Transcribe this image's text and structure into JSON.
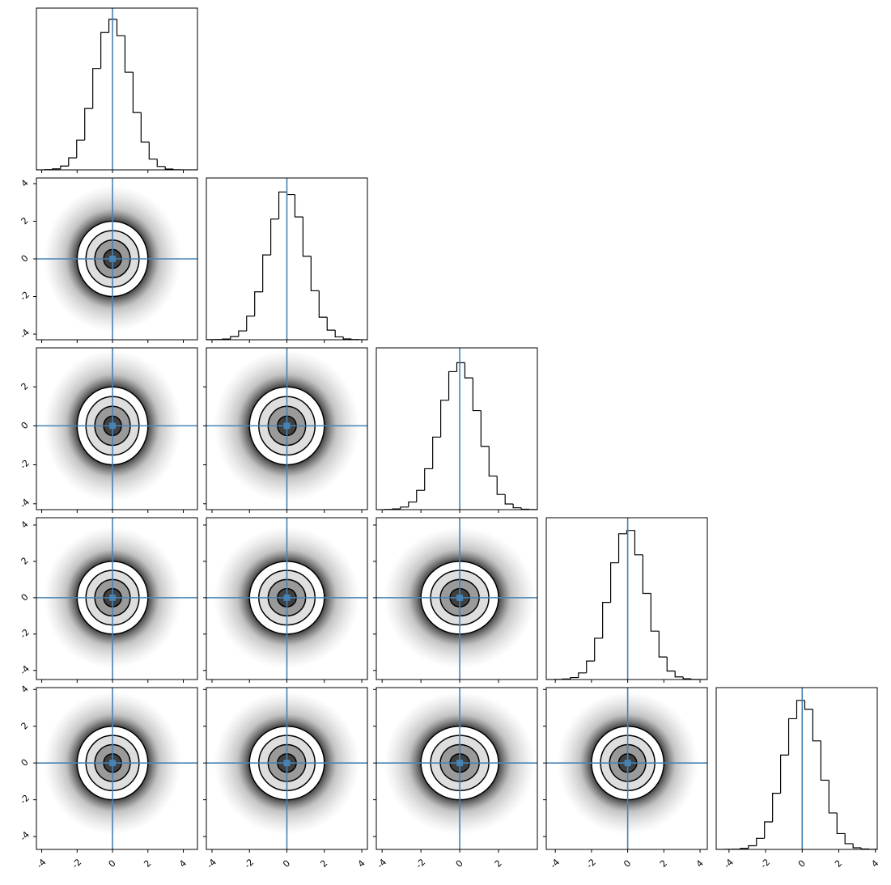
{
  "chart_data": {
    "type": "corner",
    "truths": [
      0,
      0,
      0,
      0,
      0
    ],
    "truth_color": "#4682b4",
    "contour_radii": [
      0.5,
      1,
      1.5,
      2
    ],
    "variables": [
      {
        "lim": [
          -4.3,
          4.8
        ],
        "ticks": [
          -4,
          -2,
          0,
          2,
          4
        ],
        "bins": [
          -4.3,
          -3.845,
          -3.39,
          -2.935,
          -2.48,
          -2.025,
          -1.57,
          -1.115,
          -0.66,
          -0.205,
          0.25,
          0.705,
          1.16,
          1.615,
          2.07,
          2.525,
          2.98,
          3.435,
          3.89,
          4.345,
          4.8
        ],
        "counts": [
          0,
          3,
          12,
          46,
          145,
          359,
          740,
          1222,
          1655,
          1815,
          1618,
          1178,
          691,
          335,
          130,
          41,
          10,
          2,
          0,
          0
        ],
        "hist_ylim": [
          0,
          1950
        ]
      },
      {
        "lim": [
          -4.3,
          4.3
        ],
        "ticks": [
          -4,
          -2,
          0,
          2,
          4
        ],
        "bins": [
          -4.3,
          -3.87,
          -3.44,
          -3.01,
          -2.58,
          -2.15,
          -1.72,
          -1.29,
          -0.86,
          -0.43,
          0,
          0.43,
          0.86,
          1.29,
          1.72,
          2.15,
          2.58,
          3.01,
          3.44,
          3.87,
          4.3
        ],
        "counts": [
          1,
          3,
          8,
          37,
          101,
          270,
          548,
          970,
          1380,
          1690,
          1660,
          1405,
          955,
          560,
          258,
          110,
          33,
          10,
          2,
          0
        ],
        "hist_ylim": [
          0,
          1850
        ]
      },
      {
        "lim": [
          -4.3,
          4.0
        ],
        "ticks": [
          -4,
          -2,
          0,
          2
        ],
        "bins": [
          -4.3,
          -3.885,
          -3.47,
          -3.055,
          -2.64,
          -2.225,
          -1.81,
          -1.395,
          -0.98,
          -0.565,
          -0.15,
          0.265,
          0.68,
          1.095,
          1.51,
          1.925,
          2.34,
          2.755,
          3.17,
          3.585,
          4.0
        ],
        "counts": [
          0,
          2,
          8,
          29,
          86,
          216,
          460,
          816,
          1230,
          1552,
          1653,
          1482,
          1114,
          712,
          378,
          171,
          64,
          21,
          5,
          1
        ],
        "hist_ylim": [
          0,
          1820
        ]
      },
      {
        "lim": [
          -4.5,
          4.4
        ],
        "ticks": [
          -4,
          -2,
          0,
          2,
          4
        ],
        "bins": [
          -4.5,
          -4.055,
          -3.61,
          -3.165,
          -2.72,
          -2.275,
          -1.83,
          -1.385,
          -0.94,
          -0.495,
          -0.05,
          0.395,
          0.84,
          1.285,
          1.73,
          2.175,
          2.62,
          3.065,
          3.51,
          3.955,
          4.4
        ],
        "counts": [
          0,
          1,
          6,
          23,
          78,
          217,
          485,
          906,
          1371,
          1712,
          1751,
          1465,
          1012,
          568,
          265,
          100,
          31,
          8,
          2,
          0
        ],
        "hist_ylim": [
          0,
          1900
        ]
      },
      {
        "lim": [
          -4.7,
          4.1
        ],
        "ticks": [
          -4,
          -2,
          0,
          2,
          4
        ],
        "bins": [
          -4.7,
          -4.26,
          -3.82,
          -3.38,
          -2.94,
          -2.5,
          -2.06,
          -1.62,
          -1.18,
          -0.74,
          -0.3,
          0.14,
          0.58,
          1.02,
          1.46,
          1.9,
          2.34,
          2.78,
          3.22,
          3.66,
          4.1
        ],
        "counts": [
          0,
          1,
          3,
          12,
          43,
          130,
          323,
          659,
          1108,
          1535,
          1750,
          1646,
          1275,
          813,
          428,
          186,
          67,
          19,
          5,
          1
        ],
        "hist_ylim": [
          0,
          1900
        ]
      }
    ]
  }
}
